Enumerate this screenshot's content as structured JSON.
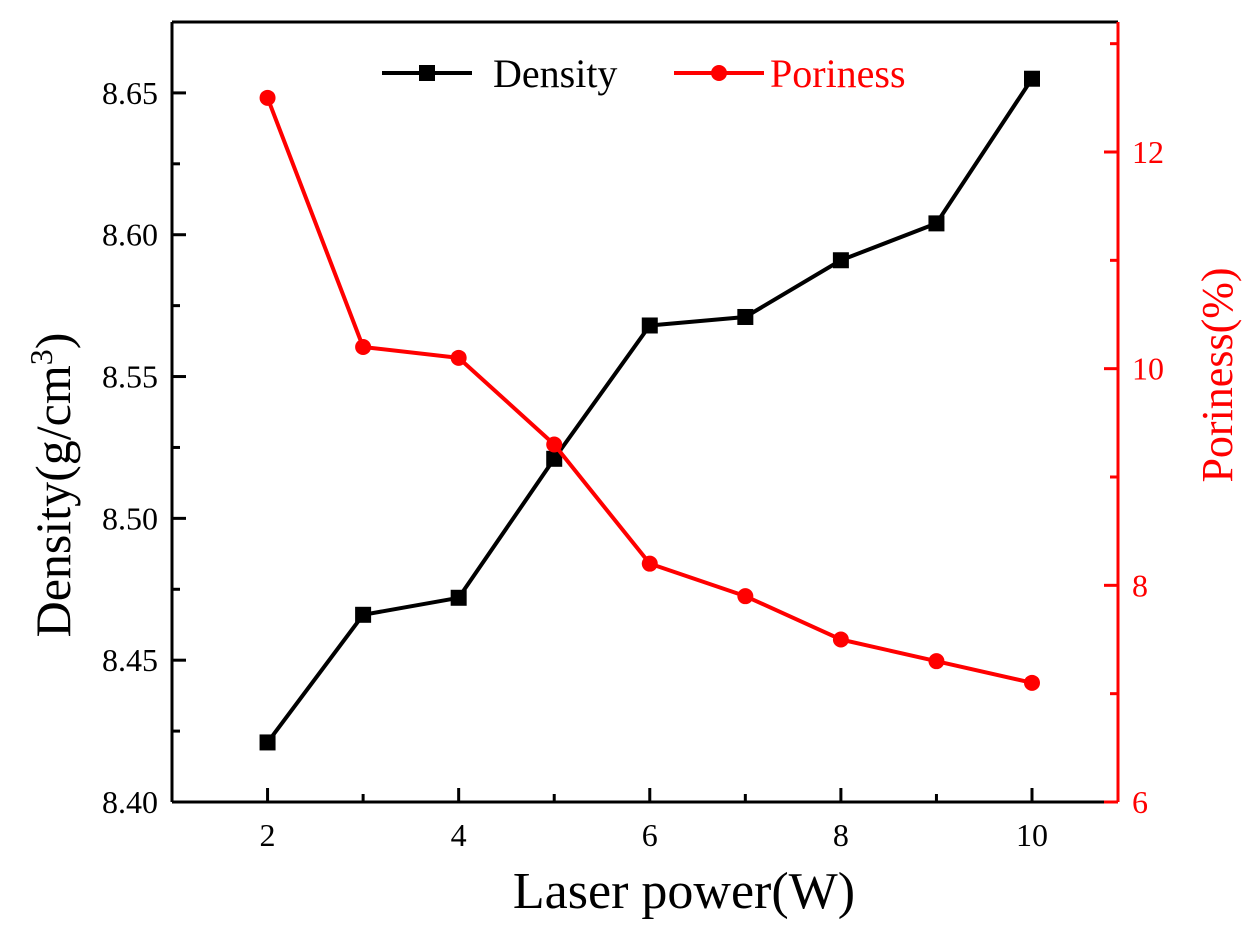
{
  "chart_data": {
    "type": "line",
    "x": [
      2,
      3,
      4,
      5,
      6,
      7,
      8,
      9,
      10
    ],
    "xlabel": "Laser power(W)",
    "xlim": [
      1,
      10.9
    ],
    "xticks": [
      2,
      4,
      6,
      8,
      10
    ],
    "ylabel_left": "Density(g/cm",
    "ylabel_left_superscript": "3",
    "ylabel_left_close": ")",
    "ylim_left": [
      8.4,
      8.675
    ],
    "yticks_left": [
      "8.40",
      "8.45",
      "8.50",
      "8.55",
      "8.60",
      "8.65"
    ],
    "ylabel_right": "Poriness(%)",
    "ylim_right": [
      6,
      13.2
    ],
    "yticks_right": [
      6,
      8,
      10,
      12
    ],
    "legend_position": "top-center",
    "grid": false,
    "series": [
      {
        "name": "Density",
        "axis": "left",
        "marker": "square",
        "color": "#000000",
        "values": [
          8.421,
          8.466,
          8.472,
          8.521,
          8.568,
          8.571,
          8.591,
          8.604,
          8.655
        ]
      },
      {
        "name": "Poriness",
        "axis": "right",
        "marker": "circle",
        "color": "#ff0000",
        "values": [
          12.5,
          10.2,
          10.1,
          9.3,
          8.2,
          7.9,
          7.5,
          7.3,
          7.1
        ]
      }
    ]
  }
}
